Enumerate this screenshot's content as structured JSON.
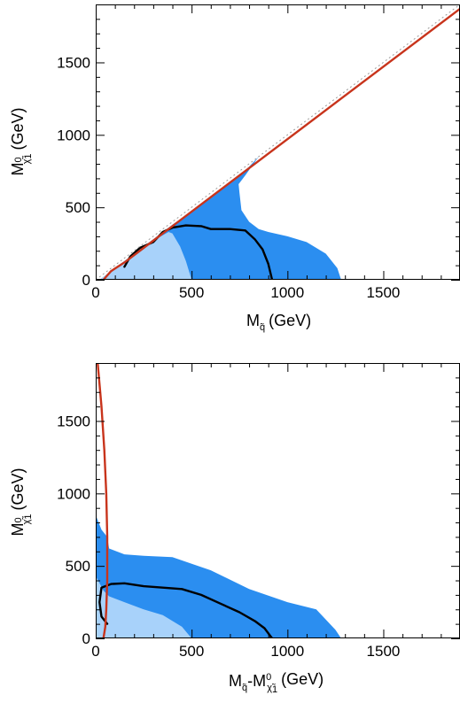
{
  "colors": {
    "dark_region": "#2b8ef0",
    "light_region": "#a8d2fa",
    "black_curve": "#000000",
    "red_line": "#c8341c",
    "diagonal": "#9a9a9a"
  },
  "chart_data": [
    {
      "type": "area",
      "xlabel": {
        "main": "M",
        "sub": "q̃",
        "unit": "(GeV)"
      },
      "ylabel": {
        "main": "M",
        "sub": "χ̃",
        "sub2": "1",
        "sup": "0",
        "unit": "(GeV)"
      },
      "xlim": [
        0,
        1900
      ],
      "ylim": [
        0,
        1900
      ],
      "xticks": [
        0,
        500,
        1000,
        1500
      ],
      "yticks": [
        0,
        500,
        1000,
        1500
      ],
      "xtick_labels": [
        "0",
        "500",
        "1000",
        "1500"
      ],
      "ytick_labels": [
        "0",
        "500",
        "1000",
        "1500"
      ],
      "grid": false,
      "series": [
        {
          "style": "dark_region",
          "x": [
            20,
            100,
            200,
            300,
            400,
            500,
            600,
            700,
            750,
            800,
            850,
            780,
            745,
            750,
            760,
            800,
            850,
            900,
            1000,
            1100,
            1200,
            1260,
            1280,
            20
          ],
          "y": [
            0,
            80,
            180,
            280,
            380,
            470,
            570,
            670,
            720,
            780,
            850,
            720,
            660,
            600,
            480,
            400,
            350,
            330,
            300,
            260,
            180,
            80,
            0,
            0
          ]
        },
        {
          "style": "light_region",
          "x": [
            20,
            100,
            200,
            300,
            380,
            400,
            440,
            470,
            500,
            20
          ],
          "y": [
            0,
            80,
            180,
            270,
            330,
            320,
            230,
            130,
            0,
            0
          ]
        },
        {
          "style": "black_curve",
          "x": [
            150,
            180,
            230,
            300,
            350,
            400,
            470,
            550,
            600,
            700,
            780,
            830,
            870,
            900,
            920
          ],
          "y": [
            90,
            160,
            220,
            260,
            330,
            360,
            375,
            370,
            350,
            350,
            340,
            280,
            210,
            110,
            0
          ]
        },
        {
          "style": "red_line",
          "x": [
            40,
            80,
            150,
            250,
            400,
            1900
          ],
          "y": [
            0,
            60,
            120,
            220,
            370,
            1870
          ]
        },
        {
          "style": "diagonal",
          "x": [
            0,
            1900
          ],
          "y": [
            0,
            1900
          ]
        }
      ]
    },
    {
      "type": "area",
      "xlabel": {
        "main": "M",
        "sub": "q̃",
        "mid": "-M",
        "sub2": "χ̃",
        "sub3": "1",
        "sup": "0",
        "unit": "(GeV)"
      },
      "ylabel": {
        "main": "M",
        "sub": "χ̃",
        "sub2": "1",
        "sup": "0",
        "unit": "(GeV)"
      },
      "xlim": [
        0,
        1900
      ],
      "ylim": [
        0,
        1900
      ],
      "xticks": [
        0,
        500,
        1000,
        1500
      ],
      "yticks": [
        0,
        500,
        1000,
        1500
      ],
      "xtick_labels": [
        "0",
        "500",
        "1000",
        "1500"
      ],
      "ytick_labels": [
        "0",
        "500",
        "1000",
        "1500"
      ],
      "grid": false,
      "series": [
        {
          "style": "dark_region",
          "x": [
            0,
            0,
            30,
            60,
            70,
            150,
            250,
            400,
            600,
            800,
            1000,
            1150,
            1250,
            1280,
            0
          ],
          "y": [
            0,
            850,
            750,
            700,
            620,
            580,
            570,
            560,
            470,
            340,
            250,
            200,
            60,
            0,
            0
          ]
        },
        {
          "style": "light_region",
          "x": [
            0,
            0,
            20,
            40,
            70,
            150,
            250,
            350,
            450,
            500,
            0
          ],
          "y": [
            0,
            430,
            380,
            330,
            290,
            250,
            200,
            160,
            80,
            0,
            0
          ]
        },
        {
          "style": "black_curve",
          "x": [
            60,
            30,
            20,
            30,
            80,
            150,
            250,
            350,
            450,
            550,
            650,
            750,
            830,
            880,
            920
          ],
          "y": [
            100,
            150,
            250,
            350,
            375,
            380,
            360,
            350,
            340,
            300,
            240,
            180,
            120,
            70,
            0
          ]
        },
        {
          "style": "red_line",
          "x": [
            10,
            30,
            45,
            55,
            60,
            60,
            55,
            50,
            40
          ],
          "y": [
            1900,
            1600,
            1300,
            1000,
            700,
            400,
            200,
            80,
            0
          ]
        }
      ]
    }
  ]
}
